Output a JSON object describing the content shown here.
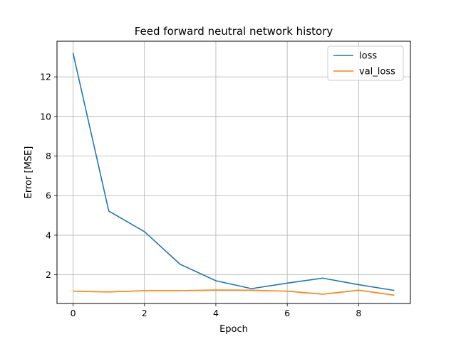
{
  "chart_data": {
    "type": "line",
    "title": "Feed forward neutral network history",
    "xlabel": "Epoch",
    "ylabel": "Error [MSE]",
    "x": [
      0,
      1,
      2,
      3,
      4,
      5,
      6,
      7,
      8,
      9
    ],
    "xlim": [
      -0.45,
      9.45
    ],
    "ylim": [
      0.55,
      13.8
    ],
    "xticks": [
      0,
      2,
      4,
      6,
      8
    ],
    "yticks": [
      2,
      4,
      6,
      8,
      10,
      12
    ],
    "grid": true,
    "legend_position": "top-right",
    "series": [
      {
        "name": "loss",
        "color": "#1f77b4",
        "values": [
          13.2,
          5.22,
          4.18,
          2.53,
          1.7,
          1.3,
          1.58,
          1.83,
          1.5,
          1.21
        ]
      },
      {
        "name": "val_loss",
        "color": "#ff7f0e",
        "values": [
          1.17,
          1.13,
          1.2,
          1.2,
          1.23,
          1.22,
          1.17,
          1.02,
          1.22,
          0.97
        ]
      }
    ]
  }
}
